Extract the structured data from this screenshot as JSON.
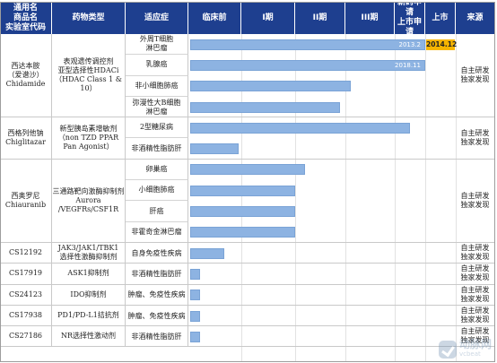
{
  "headers": [
    "通用名\n商品名\n实验室代码",
    "药物类型",
    "适应症",
    "临床前",
    "I期",
    "II期",
    "III期",
    "新药申请\n上市申请",
    "上市",
    "来源"
  ],
  "drugs": [
    {
      "name": "西达本胺\n（爱谱沙）\nChidamide",
      "type": "表观遗传调控剂\n亚型选择性HDACi\n（HDAC Class 1 & 10）",
      "source": "自主研发\n独家发现",
      "indications": [
        {
          "label": "外周T细胞\n淋巴瘤",
          "phase": 6,
          "date": "2013.2",
          "approved": "2014.12"
        },
        {
          "label": "乳腺癌",
          "phase": 5,
          "date": "2018.11"
        },
        {
          "label": "非小细胞肺癌",
          "phase": 3.1
        },
        {
          "label": "弥漫性大B细胞\n淋巴瘤",
          "phase": 2.9
        }
      ]
    },
    {
      "name": "西格列他钠\nChiglitazar",
      "type": "新型胰岛素增敏剂\n（non TZD PPAR\nPan Agonist）",
      "source": "自主研发\n独家发现",
      "indications": [
        {
          "label": "2型糖尿病",
          "phase": 4.5
        },
        {
          "label": "非酒精性脂肪肝",
          "phase": 0.95
        }
      ]
    },
    {
      "name": "西奥罗尼\nChiauranib",
      "type": "三通路靶向激酶抑制剂\nAurora /VEGFRs/CSF1R",
      "source": "自主研发\n独家发现",
      "indications": [
        {
          "label": "卵巢癌",
          "phase": 2.2
        },
        {
          "label": "小细胞肺癌",
          "phase": 2.0
        },
        {
          "label": "肝癌",
          "phase": 2.0
        },
        {
          "label": "非霍奇金淋巴瘤",
          "phase": 2.0
        }
      ]
    },
    {
      "name": "CS12192",
      "type": "JAK3/JAK1/TBK1\n选择性激酶抑制剂",
      "source": "自主研发\n独家发现",
      "indications": [
        {
          "label": "自身免疫性疾病",
          "phase": 0.68
        }
      ]
    },
    {
      "name": "CS17919",
      "type": "ASK1抑制剂",
      "source": "自主研发\n独家发现",
      "indications": [
        {
          "label": "非酒精性脂肪肝",
          "phase": 0.22
        }
      ]
    },
    {
      "name": "CS24123",
      "type": "IDO抑制剂",
      "source": "自主研发\n独家发现",
      "indications": [
        {
          "label": "肿瘤、免疫性疾病",
          "phase": 0.22
        }
      ]
    },
    {
      "name": "CS17938",
      "type": "PD1/PD-L1拮抗剂",
      "source": "自主研发\n独家发现",
      "indications": [
        {
          "label": "肿瘤、免疫性疾病",
          "phase": 0.22
        }
      ]
    },
    {
      "name": "CS27186",
      "type": "NR选择性激动剂",
      "source": "自主研发\n独家发现",
      "indications": [
        {
          "label": "非酒精性脂肪肝",
          "phase": 0.22
        }
      ]
    }
  ],
  "watermark": {
    "brand": "动脉网",
    "sub": "vcbeat"
  },
  "colors": {
    "header": "#1e3f8f",
    "bar": "#8db3e2",
    "approved": "#f7b500"
  }
}
